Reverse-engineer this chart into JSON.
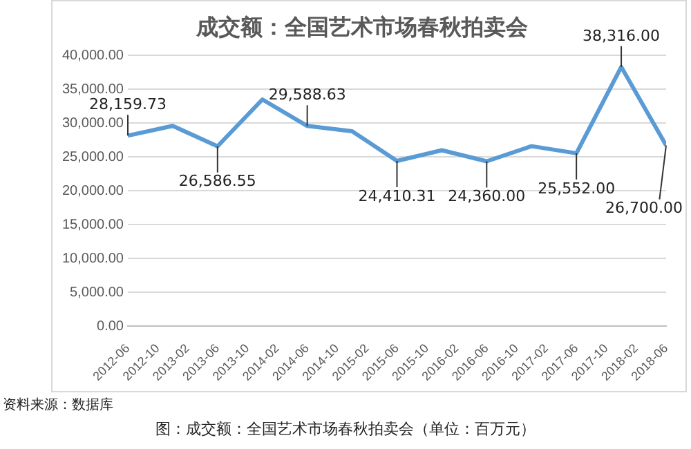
{
  "chart_data": {
    "type": "line",
    "title": "成交额：全国艺术市场春秋拍卖会",
    "x": [
      "2012-06",
      "2012-12",
      "2013-06",
      "2013-12",
      "2014-06",
      "2014-12",
      "2015-06",
      "2015-12",
      "2016-06",
      "2016-12",
      "2017-06",
      "2017-12",
      "2018-06"
    ],
    "series": [
      {
        "color": "#5b9bd5",
        "values": [
          28159.73,
          29600,
          26586.55,
          33500,
          29588.63,
          28800,
          24410.31,
          26000,
          24360,
          26600,
          25552,
          38316,
          26700
        ],
        "value_labels": [
          "28,159.73",
          null,
          "26,586.55",
          null,
          "29,588.63",
          null,
          "24,410.31",
          null,
          "24,360.00",
          null,
          "25,552.00",
          "38,316.00",
          "26,700.00"
        ]
      }
    ],
    "xlim": [
      "2012-06",
      "2018-06"
    ],
    "xticks": [
      "2012-06",
      "2012-10",
      "2013-02",
      "2013-06",
      "2013-10",
      "2014-02",
      "2014-06",
      "2014-10",
      "2015-02",
      "2015-06",
      "2015-10",
      "2016-02",
      "2016-06",
      "2016-10",
      "2017-02",
      "2017-06",
      "2017-10",
      "2018-02",
      "2018-06"
    ],
    "ylim": [
      0,
      40000
    ],
    "yticks": [
      {
        "value": 0,
        "label": "0.00"
      },
      {
        "value": 5000,
        "label": "5,000.00"
      },
      {
        "value": 10000,
        "label": "10,000.00"
      },
      {
        "value": 15000,
        "label": "15,000.00"
      },
      {
        "value": 20000,
        "label": "20,000.00"
      },
      {
        "value": 25000,
        "label": "25,000.00"
      },
      {
        "value": 30000,
        "label": "30,000.00"
      },
      {
        "value": 35000,
        "label": "35,000.00"
      },
      {
        "value": 40000,
        "label": "40,000.00"
      }
    ],
    "grid": "y",
    "legend": false,
    "marker": "none",
    "line_style": "solid",
    "annotations": [
      "资料来源：数据库",
      "图：成交额：全国艺术市场春秋拍卖会（单位：百万元）"
    ]
  }
}
